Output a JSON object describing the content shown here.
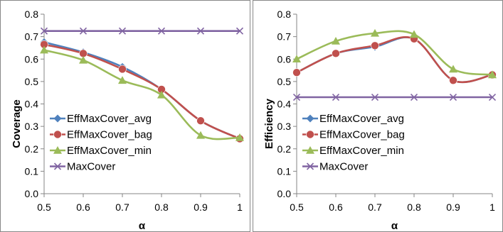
{
  "chart_data": [
    {
      "type": "line",
      "title": "",
      "xlabel": "α",
      "ylabel": "Coverage",
      "xlim": [
        0.5,
        1
      ],
      "ylim": [
        0,
        0.8
      ],
      "x_ticks": [
        "0.5",
        "0.6",
        "0.7",
        "0.8",
        "0.9",
        "1"
      ],
      "y_ticks": [
        "0.0",
        "0.1",
        "0.2",
        "0.3",
        "0.4",
        "0.5",
        "0.6",
        "0.7",
        "0.8"
      ],
      "grid": false,
      "legend_position": "bottom-left",
      "x": [
        0.5,
        0.6,
        0.7,
        0.8,
        0.9,
        1.0
      ],
      "series": [
        {
          "name": "EffMaxCover_avg",
          "values": [
            0.675,
            0.63,
            0.565,
            0.465,
            0.325,
            0.245
          ],
          "color": "#4f81bd",
          "marker": "diamond"
        },
        {
          "name": "EffMaxCover_bag",
          "values": [
            0.665,
            0.625,
            0.555,
            0.465,
            0.325,
            0.245
          ],
          "color": "#c0504d",
          "marker": "circle"
        },
        {
          "name": "EffMaxCover_min",
          "values": [
            0.64,
            0.595,
            0.505,
            0.44,
            0.26,
            0.25
          ],
          "color": "#9bbb59",
          "marker": "triangle"
        },
        {
          "name": "MaxCover",
          "values": [
            0.725,
            0.725,
            0.725,
            0.725,
            0.725,
            0.725
          ],
          "color": "#8064a2",
          "marker": "x"
        }
      ]
    },
    {
      "type": "line",
      "title": "",
      "xlabel": "α",
      "ylabel": "Efficiency",
      "xlim": [
        0.5,
        1
      ],
      "ylim": [
        0,
        0.8
      ],
      "x_ticks": [
        "0.5",
        "0.6",
        "0.7",
        "0.8",
        "0.9",
        "1"
      ],
      "y_ticks": [
        "0.0",
        "0.1",
        "0.2",
        "0.3",
        "0.4",
        "0.5",
        "0.6",
        "0.7",
        "0.8"
      ],
      "grid": false,
      "legend_position": "bottom-left",
      "x": [
        0.5,
        0.6,
        0.7,
        0.8,
        0.9,
        1.0
      ],
      "series": [
        {
          "name": "EffMaxCover_avg",
          "values": [
            0.54,
            0.625,
            0.655,
            0.69,
            0.505,
            0.53
          ],
          "color": "#4f81bd",
          "marker": "diamond"
        },
        {
          "name": "EffMaxCover_bag",
          "values": [
            0.54,
            0.625,
            0.66,
            0.69,
            0.505,
            0.53
          ],
          "color": "#c0504d",
          "marker": "circle"
        },
        {
          "name": "EffMaxCover_min",
          "values": [
            0.6,
            0.68,
            0.715,
            0.71,
            0.555,
            0.53
          ],
          "color": "#9bbb59",
          "marker": "triangle"
        },
        {
          "name": "MaxCover",
          "values": [
            0.43,
            0.43,
            0.43,
            0.43,
            0.43,
            0.43
          ],
          "color": "#8064a2",
          "marker": "x"
        }
      ]
    }
  ]
}
